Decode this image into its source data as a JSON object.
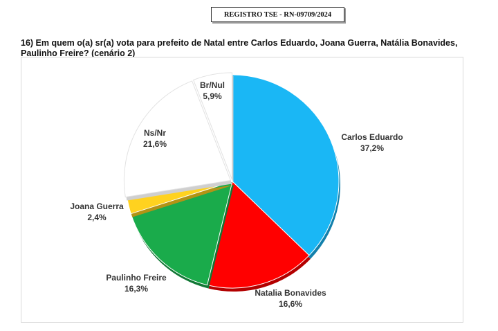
{
  "registry": "REGISTRO TSE - RN-09709/2024",
  "question": "16) Em quem o(a) sr(a) vota para prefeito de Natal entre Carlos Eduardo, Joana Guerra, Natália Bonavides, Paulinho Freire? (cenário 2)",
  "chart_data": {
    "type": "pie",
    "slices": [
      {
        "name": "Carlos Eduardo",
        "label": "37,2%",
        "value": 37.2,
        "color": "#1ab7f5"
      },
      {
        "name": "Natalia Bonavides",
        "label": "16,6%",
        "value": 16.6,
        "color": "#ff0000"
      },
      {
        "name": "Paulinho Freire",
        "label": "16,3%",
        "value": 16.3,
        "color": "#1aab4b"
      },
      {
        "name": "Joana Guerra",
        "label": "2,4%",
        "value": 2.4,
        "color": "#ffd21f"
      },
      {
        "name": "Ns/Nr",
        "label": "21,6%",
        "value": 21.6,
        "color": "#ffffff"
      },
      {
        "name": "Br/Nul",
        "label": "5,9%",
        "value": 5.9,
        "color": "#ffffff"
      }
    ]
  }
}
